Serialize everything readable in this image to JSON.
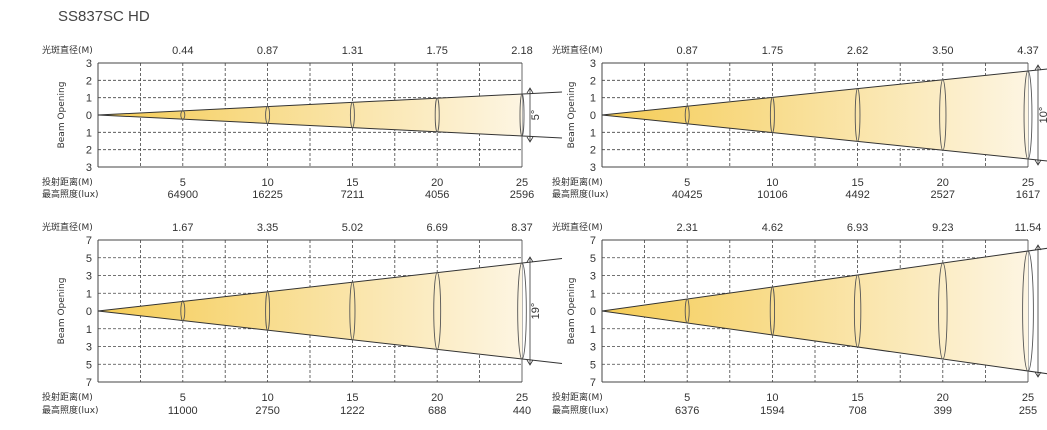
{
  "header": {
    "title": "SS837SC HD"
  },
  "labels": {
    "diameter": "光斑直径(M)",
    "distance": "投射距离(M)",
    "illuminance": "最高照度(lux)",
    "y_axis": "Beam Opening"
  },
  "colors": {
    "beam_near": "#f5cc55",
    "beam_far": "#fdf5e2",
    "line": "#333333"
  },
  "chart_data": [
    {
      "type": "area",
      "angle_label": "5°",
      "distances": [
        "5",
        "10",
        "15",
        "20",
        "25"
      ],
      "diameters": [
        "0.44",
        "0.87",
        "1.31",
        "1.75",
        "2.18"
      ],
      "illuminance": [
        "64900",
        "16225",
        "7211",
        "4056",
        "2596"
      ],
      "y_ticks": [
        "3",
        "2",
        "1",
        "0",
        "1",
        "2",
        "3"
      ],
      "ylim": [
        -3,
        3
      ],
      "xlim": [
        0,
        25
      ],
      "grid": true
    },
    {
      "type": "area",
      "angle_label": "10°",
      "distances": [
        "5",
        "10",
        "15",
        "20",
        "25"
      ],
      "diameters": [
        "0.87",
        "1.75",
        "2.62",
        "3.50",
        "4.37"
      ],
      "illuminance": [
        "40425",
        "10106",
        "4492",
        "2527",
        "1617"
      ],
      "y_ticks": [
        "3",
        "2",
        "1",
        "0",
        "1",
        "2",
        "3"
      ],
      "ylim": [
        -3,
        3
      ],
      "xlim": [
        0,
        25
      ],
      "grid": true
    },
    {
      "type": "area",
      "angle_label": "19°",
      "distances": [
        "5",
        "10",
        "15",
        "20",
        "25"
      ],
      "diameters": [
        "1.67",
        "3.35",
        "5.02",
        "6.69",
        "8.37"
      ],
      "illuminance": [
        "11000",
        "2750",
        "1222",
        "688",
        "440"
      ],
      "y_ticks": [
        "7",
        "5",
        "3",
        "1",
        "0",
        "1",
        "3",
        "5",
        "7"
      ],
      "ylim": [
        -7,
        7
      ],
      "xlim": [
        0,
        25
      ],
      "grid": true
    },
    {
      "type": "area",
      "angle_label": "",
      "distances": [
        "5",
        "10",
        "15",
        "20",
        "25"
      ],
      "diameters": [
        "2.31",
        "4.62",
        "6.93",
        "9.23",
        "11.54"
      ],
      "illuminance": [
        "6376",
        "1594",
        "708",
        "399",
        "255"
      ],
      "y_ticks": [
        "7",
        "5",
        "3",
        "1",
        "0",
        "1",
        "3",
        "5",
        "7"
      ],
      "ylim": [
        -7,
        7
      ],
      "xlim": [
        0,
        25
      ],
      "grid": true
    }
  ]
}
